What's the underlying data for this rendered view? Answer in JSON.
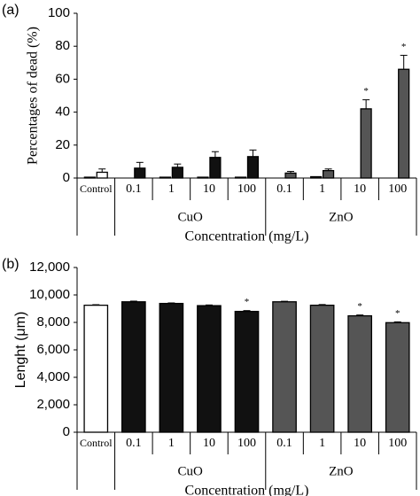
{
  "chart_data": [
    {
      "type": "bar",
      "panel_label": "(a)",
      "y_label": "Percentages of dead (%)",
      "x_label": "Concentration (mg/L)",
      "categories": [
        "Control",
        "0.1",
        "1",
        "10",
        "100",
        "0.1",
        "1",
        "10",
        "100"
      ],
      "groups": [
        {
          "label": "CuO",
          "from": 1,
          "to": 4
        },
        {
          "label": "ZnO",
          "from": 5,
          "to": 8
        }
      ],
      "series": [
        {
          "colors": [
            "#333333",
            "#333333",
            "#333333",
            "#333333",
            "#333333",
            "#333333",
            "#333333",
            "#333333",
            "#333333"
          ],
          "values": [
            0.5,
            0,
            0.5,
            0.5,
            0.5,
            0,
            0.8,
            0,
            0
          ]
        },
        {
          "colors": [
            "#ffffff",
            "#111111",
            "#111111",
            "#111111",
            "#111111",
            "#555555",
            "#555555",
            "#555555",
            "#555555"
          ],
          "values": [
            3.5,
            6,
            6.5,
            12.5,
            13,
            3,
            4.5,
            42,
            66
          ],
          "errors": [
            2,
            3.5,
            2,
            3.5,
            4,
            1,
            1,
            5.5,
            8.5
          ],
          "significant": [
            false,
            false,
            false,
            false,
            false,
            false,
            false,
            true,
            true
          ]
        }
      ],
      "marker": "*",
      "ylim": [
        0,
        100
      ],
      "yticks": [
        0,
        20,
        40,
        60,
        80,
        100
      ]
    },
    {
      "type": "bar",
      "panel_label": "(b)",
      "y_label": "Lenght (μm)",
      "x_label": "Concentration (mg/L)",
      "categories": [
        "Control",
        "0.1",
        "1",
        "10",
        "100",
        "0.1",
        "1",
        "10",
        "100"
      ],
      "groups": [
        {
          "label": "CuO",
          "from": 1,
          "to": 4
        },
        {
          "label": "ZnO",
          "from": 5,
          "to": 8
        }
      ],
      "series": [
        {
          "colors": [
            "#ffffff",
            "#111111",
            "#111111",
            "#111111",
            "#111111",
            "#555555",
            "#555555",
            "#555555",
            "#555555"
          ],
          "values": [
            9250,
            9500,
            9380,
            9220,
            8800,
            9500,
            9250,
            8480,
            7980
          ],
          "errors": [
            40,
            50,
            40,
            50,
            60,
            40,
            50,
            60,
            60
          ],
          "significant": [
            false,
            false,
            false,
            false,
            true,
            false,
            false,
            true,
            true
          ]
        }
      ],
      "marker": "*",
      "ylim": [
        0,
        12000
      ],
      "yticks": [
        0,
        {
          "value": 2000,
          "label": "2,000"
        },
        {
          "value": 4000,
          "label": "4,000"
        },
        {
          "value": 6000,
          "label": "6,000"
        },
        {
          "value": 8000,
          "label": "8,000"
        },
        {
          "value": 10000,
          "label": "10,000"
        },
        {
          "value": 12000,
          "label": "12,000"
        }
      ]
    }
  ]
}
